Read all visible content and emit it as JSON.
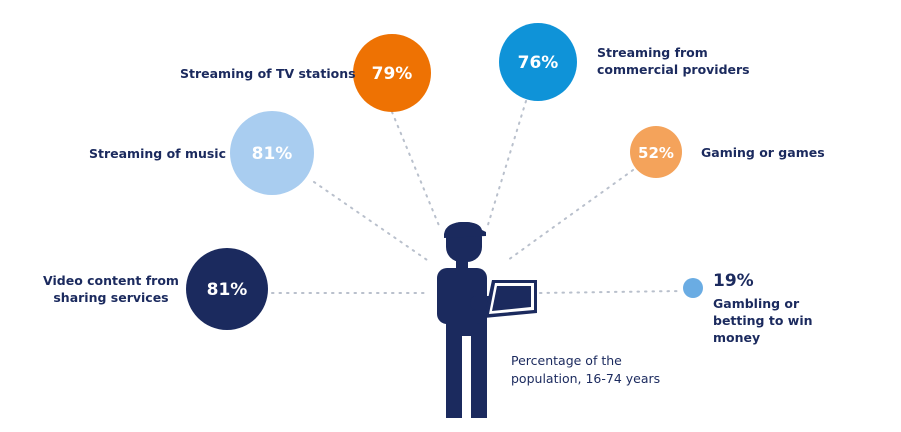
{
  "chart_data": {
    "type": "bubble-infographic",
    "unit": "%",
    "note": "Percentage of the population, 16-74 years",
    "items": [
      {
        "id": "tv",
        "label": "Streaming of TV stations",
        "value": 79,
        "display": "79%",
        "color": "#ee7203"
      },
      {
        "id": "commercial",
        "label": "Streaming from commercial providers",
        "value": 76,
        "display": "76%",
        "color": "#0f93d8"
      },
      {
        "id": "music",
        "label": "Streaming of music",
        "value": 81,
        "display": "81%",
        "color": "#a9cdf0"
      },
      {
        "id": "gaming",
        "label": "Gaming or games",
        "value": 52,
        "display": "52%",
        "color": "#f4a35b"
      },
      {
        "id": "video",
        "label": "Video content from sharing services",
        "value": 81,
        "display": "81%",
        "color": "#1b2a5e"
      },
      {
        "id": "gambling",
        "label": "Gambling or betting to win money",
        "value": 19,
        "display": "19%",
        "color": "#6aace3"
      }
    ]
  },
  "colors": {
    "person": "#1b2a5e",
    "connector": "#b9c0cc",
    "text": "#1b2a5e"
  },
  "icons": {
    "person": "person-with-laptop-icon"
  }
}
